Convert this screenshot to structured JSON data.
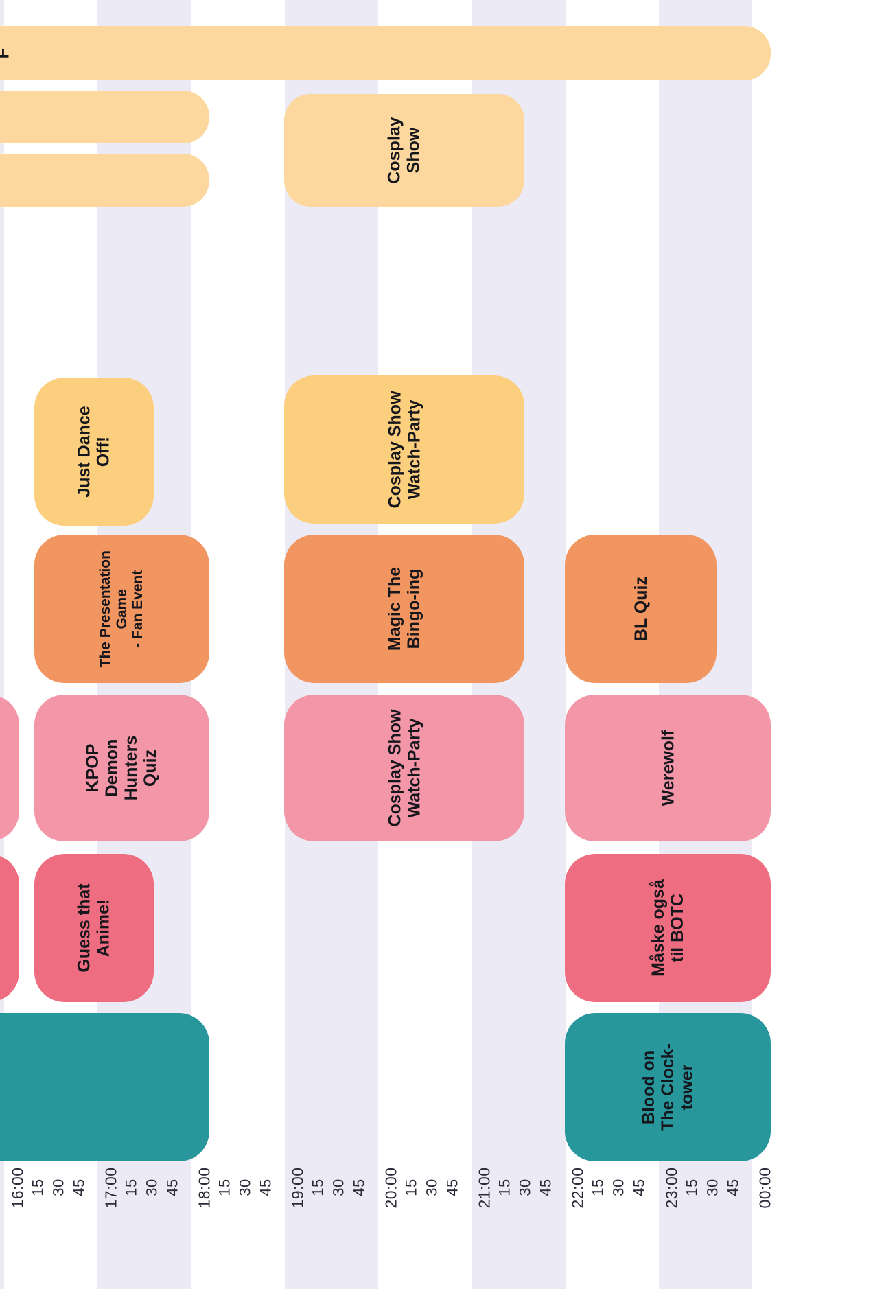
{
  "timeline": {
    "ticks": [
      "16:00",
      "15",
      "30",
      "45",
      "17:00",
      "15",
      "30",
      "45",
      "18:00",
      "15",
      "30",
      "45",
      "19:00",
      "15",
      "30",
      "45",
      "20:00",
      "15",
      "30",
      "45",
      "21:00",
      "15",
      "30",
      "45",
      "22:00",
      "15",
      "30",
      "45",
      "23:00",
      "15",
      "30",
      "45",
      "00:00"
    ]
  },
  "events": {
    "top_banner": "F",
    "cosplay_show": "Cosplay\nShow",
    "just_dance": "Just Dance\nOff!",
    "presentation_game": "The Presentation\nGame\n- Fan Event",
    "kpop_quiz": "KPOP\nDemon\nHunters\nQuiz",
    "guess_anime": "Guess that\nAnime!",
    "cosplay_watch_1": "Cosplay Show\nWatch-Party",
    "magic_bingo": "Magic The\nBingo-ing",
    "cosplay_watch_2": "Cosplay Show\nWatch-Party",
    "bl_quiz": "BL Quiz",
    "werewolf": "Werewolf",
    "maske_botc": "Måske også\ntil BOTC",
    "blood_clocktower": "Blood on\nThe Clock-\ntower"
  },
  "colors": {
    "sand": "#fdd89e",
    "yellow": "#fbcf7e",
    "orange": "#f29661",
    "pink": "#f397a8",
    "red": "#ee6d80",
    "teal": "#28979c",
    "band": "#ecebf5"
  }
}
